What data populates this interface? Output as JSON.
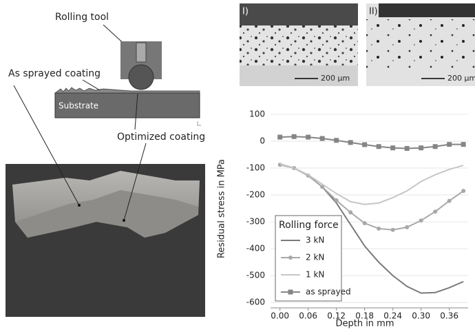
{
  "figure": {
    "rolling_tool": "Rolling tool",
    "as_sprayed_coating": "As sprayed coating",
    "substrate": "Substrate",
    "optimized_coating": "Optimized coating",
    "micrograph_1": {
      "label": "I)",
      "scale": "200 µm"
    },
    "micrograph_2": {
      "label": "II)",
      "scale": "200 µm"
    }
  },
  "chart_data": {
    "type": "line",
    "x_label": "Depth in mm",
    "y_label": "Residual stress in MPa",
    "legend_title": "Rolling force",
    "legend": "bottom-left",
    "grid": true,
    "x": [
      0,
      0.03,
      0.06,
      0.09,
      0.12,
      0.15,
      0.18,
      0.21,
      0.24,
      0.27,
      0.3,
      0.33,
      0.36,
      0.39
    ],
    "xlim": [
      -0.02,
      0.4
    ],
    "ylim": [
      -620,
      110
    ],
    "xticks": [
      {
        "value": 0,
        "label": "0.00"
      },
      0.06,
      0.12,
      0.18,
      0.24,
      {
        "value": 0.3,
        "label": "0.30"
      },
      0.36
    ],
    "yticks": [
      100,
      0,
      -100,
      -200,
      -300,
      -400,
      -500,
      -600
    ],
    "series": [
      {
        "name": "3 kN",
        "color": "#7a7a7a",
        "marker": "none",
        "values": [
          -85,
          -100,
          -128,
          -170,
          -230,
          -310,
          -390,
          -450,
          -500,
          -540,
          -565,
          -563,
          -545,
          -522
        ]
      },
      {
        "name": "2 kN",
        "color": "#a8a8a8",
        "marker": "circle",
        "values": [
          -88,
          -100,
          -128,
          -170,
          -220,
          -265,
          -305,
          -325,
          -330,
          -320,
          -295,
          -262,
          -222,
          -185
        ]
      },
      {
        "name": "1 kN",
        "color": "#c6c6c6",
        "marker": "none",
        "values": [
          -85,
          -100,
          -125,
          -160,
          -195,
          -225,
          -235,
          -230,
          -210,
          -185,
          -150,
          -125,
          -105,
          -90
        ]
      },
      {
        "name": "as sprayed",
        "color": "#858585",
        "marker": "square",
        "values": [
          15,
          17,
          15,
          10,
          3,
          -5,
          -13,
          -20,
          -25,
          -27,
          -25,
          -20,
          -12,
          -12
        ]
      }
    ]
  }
}
